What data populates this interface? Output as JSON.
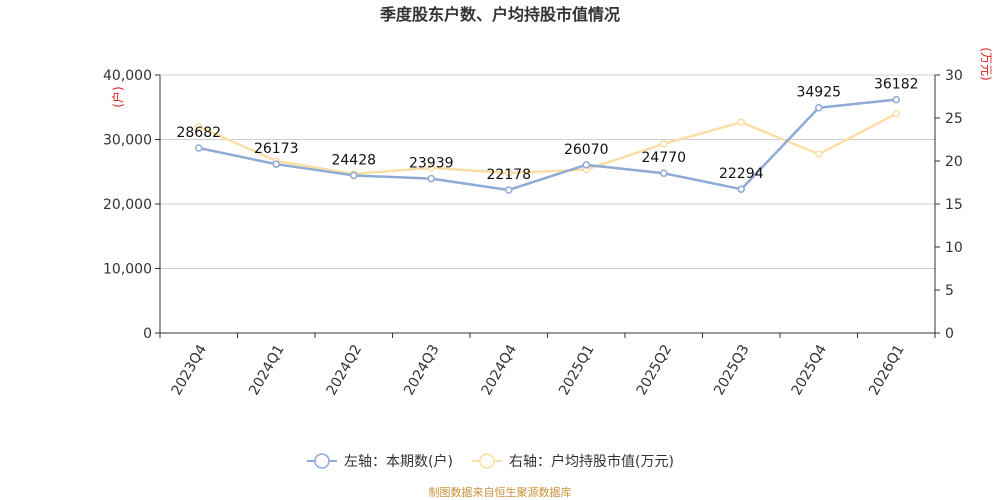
{
  "chart_data": {
    "type": "line",
    "title": "季度股东户数、户均持股市值情况",
    "categories": [
      "2023Q4",
      "2024Q1",
      "2024Q2",
      "2024Q3",
      "2024Q4",
      "2025Q1",
      "2025Q2",
      "2025Q3",
      "2025Q4",
      "2026Q1"
    ],
    "left_axis": {
      "unit": "(户)",
      "ylim": [
        0,
        40000
      ],
      "ticks": [
        "0",
        "10,000",
        "20,000",
        "30,000",
        "40,000"
      ],
      "tick_values": [
        0,
        10000,
        20000,
        30000,
        40000
      ]
    },
    "right_axis": {
      "unit": "(万元)",
      "ylim": [
        0,
        30
      ],
      "ticks": [
        "0",
        "5",
        "10",
        "15",
        "20",
        "25",
        "30"
      ],
      "tick_values": [
        0,
        5,
        10,
        15,
        20,
        25,
        30
      ]
    },
    "series": [
      {
        "name": "左轴：本期数(户)",
        "axis": "left",
        "color": "#8eaad6",
        "values": [
          28682,
          26173,
          24428,
          23939,
          22178,
          26070,
          24770,
          22294,
          34925,
          36182
        ],
        "labels": [
          "28682",
          "26173",
          "24428",
          "23939",
          "22178",
          "26070",
          "24770",
          "22294",
          "34925",
          "36182"
        ]
      },
      {
        "name": "右轴：户均持股市值(万元)",
        "axis": "right",
        "color": "#f9dfa5",
        "values": [
          24.0,
          20.0,
          18.5,
          19.2,
          18.6,
          19.0,
          22.0,
          24.5,
          20.8,
          25.5
        ]
      }
    ],
    "grid": true,
    "legend": "bottom-center"
  },
  "source": "制图数据来自恒生聚源数据库"
}
